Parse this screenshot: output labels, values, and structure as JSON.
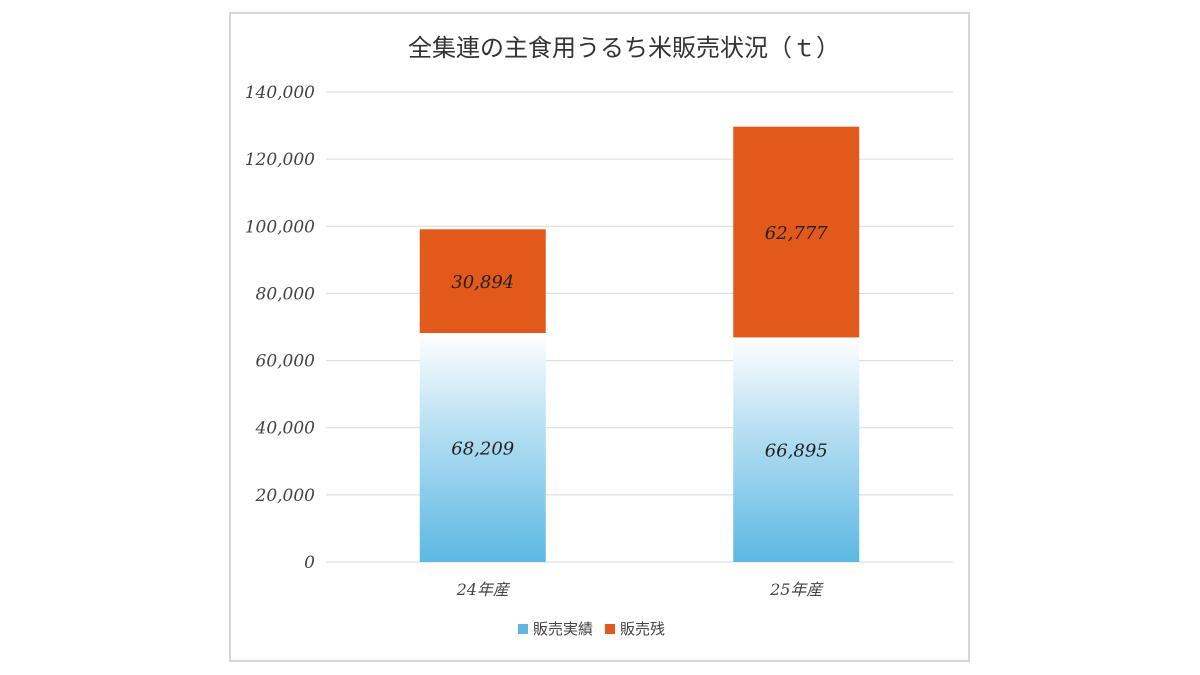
{
  "chart_data": {
    "type": "bar",
    "stacked": true,
    "title": "全集連の主食用うるち米販売状況（ｔ）",
    "categories": [
      "24年産",
      "25年産"
    ],
    "series": [
      {
        "name": "販売実績",
        "values": [
          68209,
          66895
        ],
        "labels": [
          "68,209",
          "66,895"
        ],
        "color": "#5cb8e3"
      },
      {
        "name": "販売残",
        "values": [
          30894,
          62777
        ],
        "labels": [
          "30,894",
          "62,777"
        ],
        "color": "#e3581b"
      }
    ],
    "ylim": [
      0,
      140000
    ],
    "yticks": [
      "0",
      "20,000",
      "40,000",
      "60,000",
      "80,000",
      "100,000",
      "120,000",
      "140,000"
    ],
    "ytick_values": [
      0,
      20000,
      40000,
      60000,
      80000,
      100000,
      120000,
      140000
    ],
    "grid": true,
    "legend_position": "bottom"
  }
}
